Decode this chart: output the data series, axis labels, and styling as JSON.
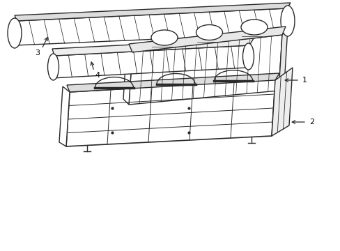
{
  "bg_color": "#ffffff",
  "line_color": "#2a2a2a",
  "line_width": 1.0,
  "fig_w": 4.89,
  "fig_h": 3.6,
  "dpi": 100
}
